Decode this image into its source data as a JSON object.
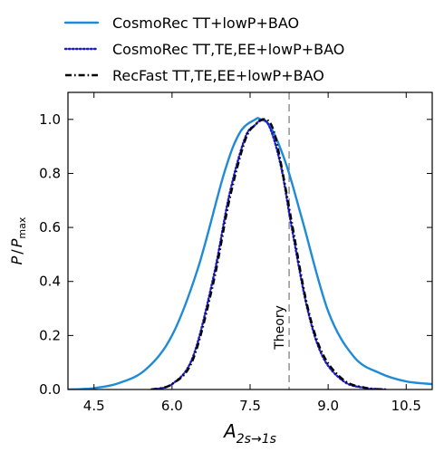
{
  "chart_data": {
    "type": "line",
    "title": "",
    "xlabel": {
      "base": "A",
      "subscript": "2s→1s"
    },
    "ylabel": {
      "numerator": "P",
      "slash": "/",
      "denominator": "P",
      "denominator_subscript": "max"
    },
    "xlim": [
      4.0,
      11.0
    ],
    "ylim": [
      0.0,
      1.1
    ],
    "xticks": [
      4.5,
      6.0,
      7.5,
      9.0,
      10.5
    ],
    "xtick_labels": [
      "4.5",
      "6.0",
      "7.5",
      "9.0",
      "10.5"
    ],
    "yticks": [
      0.0,
      0.2,
      0.4,
      0.6,
      0.8,
      1.0
    ],
    "ytick_labels": [
      "0.0",
      "0.2",
      "0.4",
      "0.6",
      "0.8",
      "1.0"
    ],
    "grid": false,
    "legend_position": "top-outside",
    "series": [
      {
        "name": "CosmoRec TT+lowP+BAO",
        "color": "#1f8ad6",
        "style": "solid",
        "x": [
          4.0,
          4.5,
          5.0,
          5.5,
          6.0,
          6.5,
          7.0,
          7.3,
          7.6,
          7.7,
          7.9,
          8.2,
          8.5,
          9.0,
          9.5,
          10.0,
          10.5,
          11.0
        ],
        "y": [
          0.0,
          0.005,
          0.025,
          0.075,
          0.2,
          0.45,
          0.8,
          0.95,
          1.0,
          1.0,
          0.97,
          0.83,
          0.63,
          0.29,
          0.12,
          0.06,
          0.03,
          0.02
        ]
      },
      {
        "name": "CosmoRec TT,TE,EE+lowP+BAO",
        "color": "#1c1cd4",
        "style": "dotted",
        "x": [
          5.6,
          6.0,
          6.4,
          6.8,
          7.1,
          7.4,
          7.6,
          7.75,
          7.9,
          8.1,
          8.3,
          8.6,
          8.9,
          9.3,
          9.7,
          10.1
        ],
        "y": [
          0.0,
          0.02,
          0.12,
          0.42,
          0.72,
          0.93,
          0.98,
          1.0,
          0.96,
          0.82,
          0.6,
          0.3,
          0.12,
          0.03,
          0.006,
          0.0
        ]
      },
      {
        "name": "RecFast TT,TE,EE+lowP+BAO",
        "color": "#000000",
        "style": "dashdot",
        "x": [
          5.6,
          6.0,
          6.4,
          6.8,
          7.1,
          7.4,
          7.6,
          7.8,
          7.95,
          8.1,
          8.3,
          8.6,
          8.9,
          9.3,
          9.7,
          10.1
        ],
        "y": [
          0.0,
          0.02,
          0.11,
          0.4,
          0.7,
          0.92,
          0.98,
          1.0,
          0.96,
          0.83,
          0.62,
          0.31,
          0.13,
          0.035,
          0.007,
          0.0
        ]
      }
    ],
    "annotations": [
      {
        "type": "vline",
        "x": 8.25,
        "style": "dashed",
        "color": "#808080"
      },
      {
        "type": "text",
        "text": "Theory",
        "x": 8.25,
        "y": 0.23,
        "rotation": -90
      }
    ]
  }
}
